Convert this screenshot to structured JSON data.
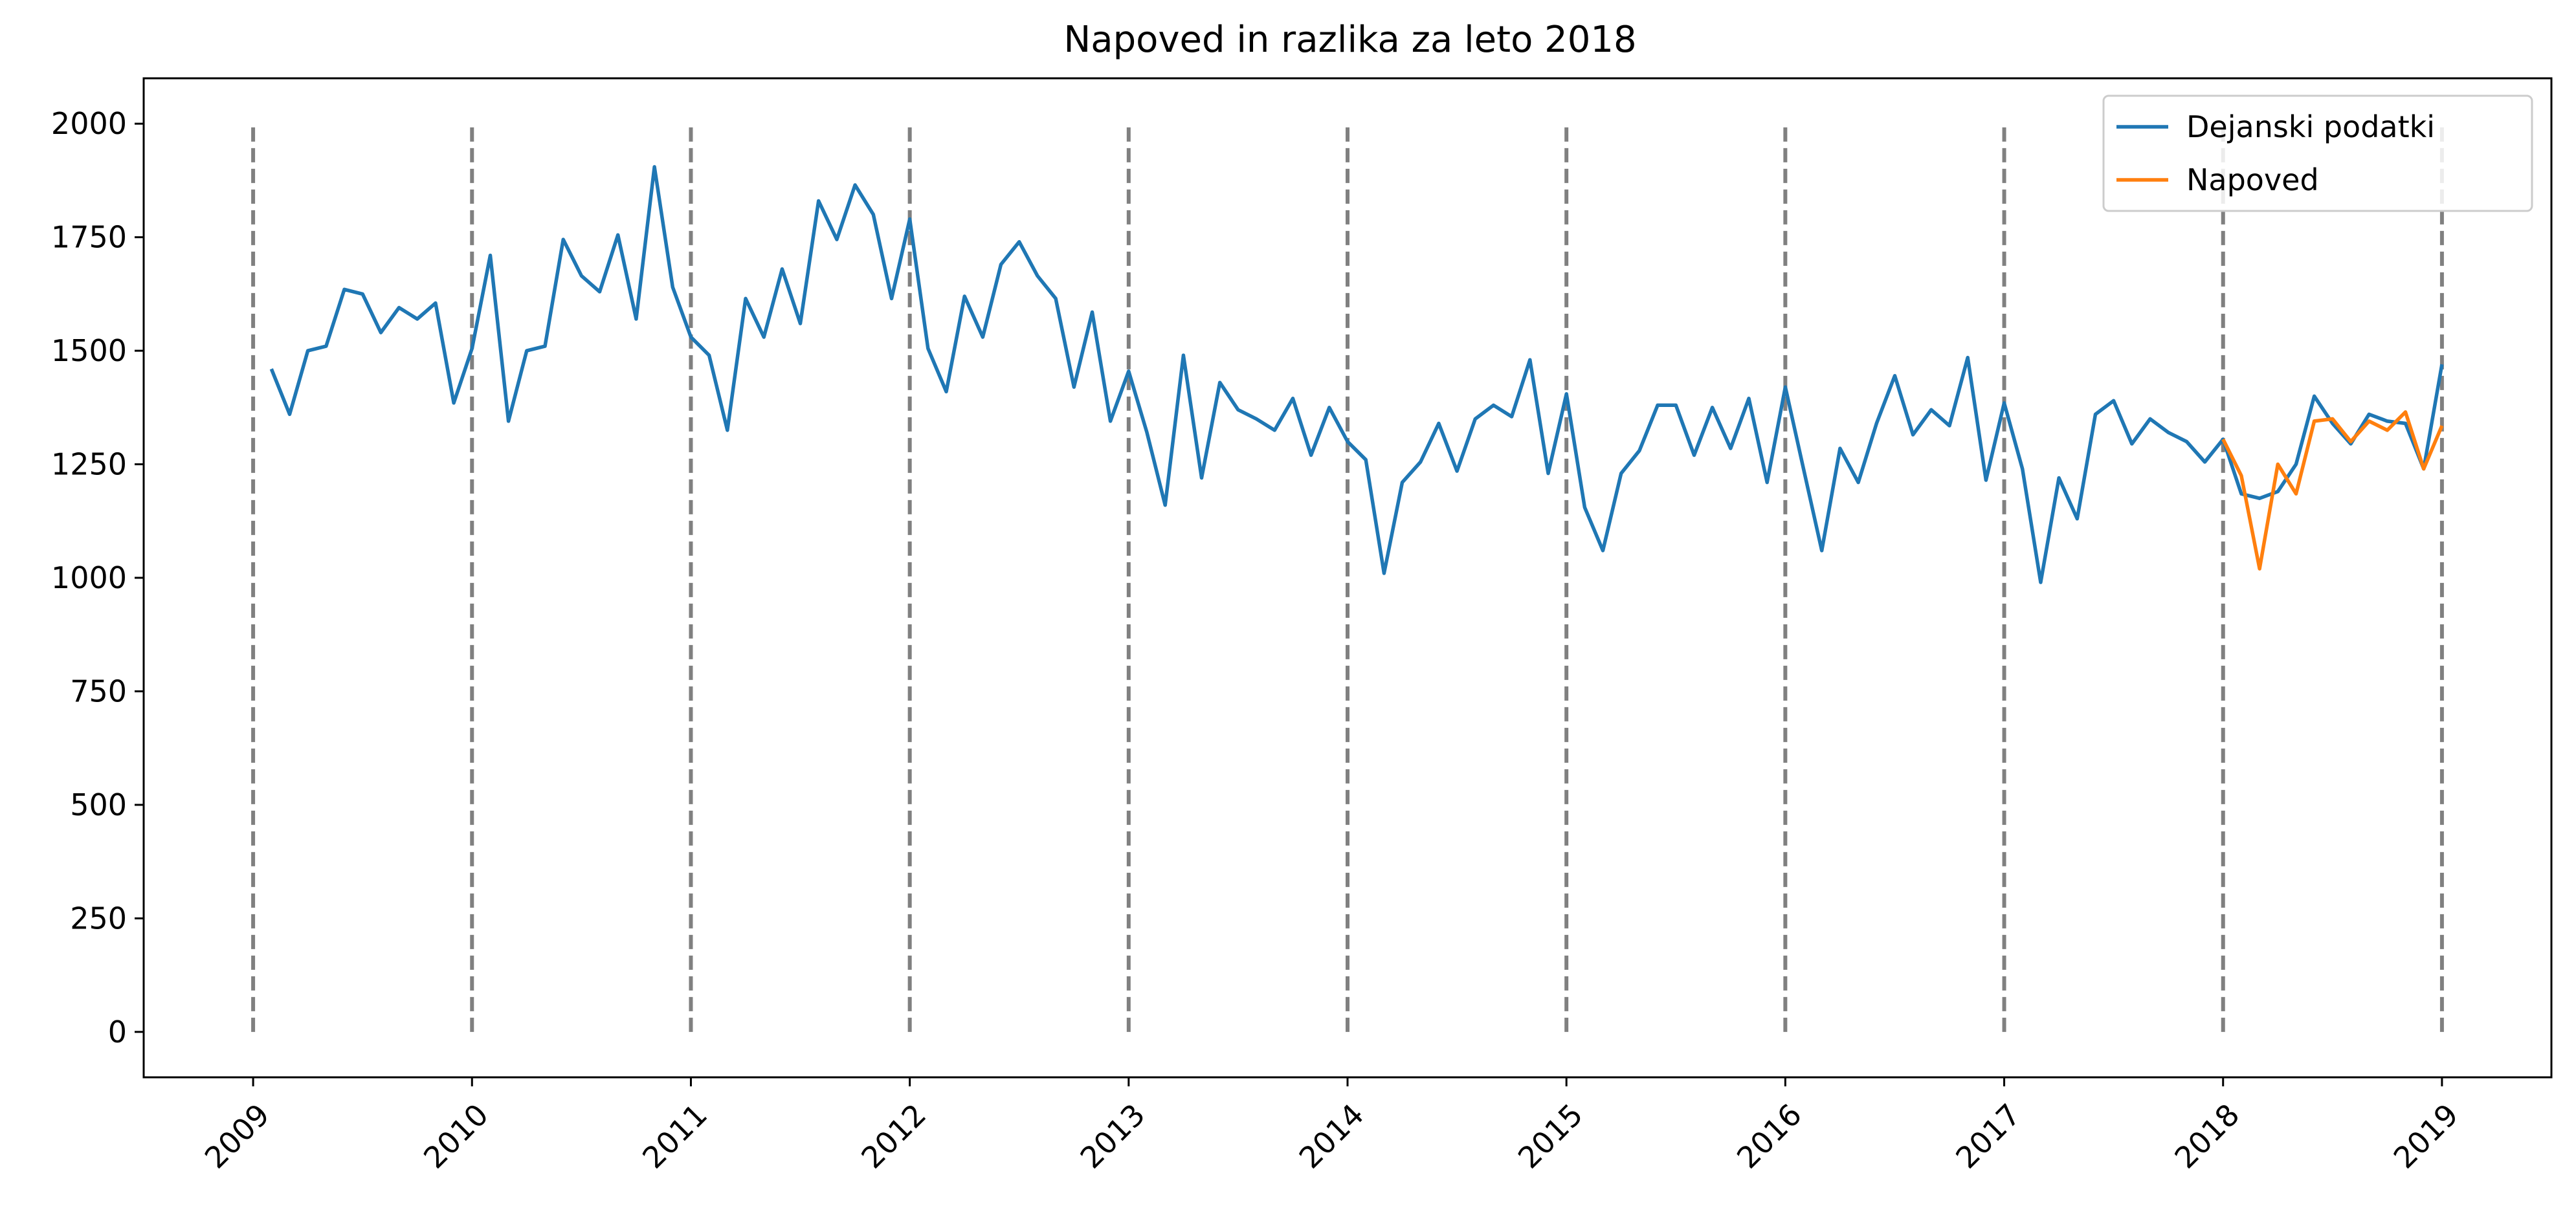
{
  "chart_data": {
    "type": "line",
    "title": "Napoved in razlika za leto 2018",
    "xlabel": "",
    "ylabel": "",
    "x_ticks": [
      "2009",
      "2010",
      "2011",
      "2012",
      "2013",
      "2014",
      "2015",
      "2016",
      "2017",
      "2018",
      "2019"
    ],
    "y_ticks": [
      0,
      250,
      500,
      750,
      1000,
      1250,
      1500,
      1750,
      2000
    ],
    "xlim": [
      2008.5,
      2019.5
    ],
    "ylim": [
      -100,
      2100
    ],
    "grid": false,
    "legend_position": "top-right",
    "year_markers": {
      "years": [
        2009,
        2010,
        2011,
        2012,
        2013,
        2014,
        2015,
        2016,
        2017,
        2018,
        2019
      ],
      "y_from": 0,
      "y_to": 2000,
      "color": "#808080",
      "style": "dashed"
    },
    "series": [
      {
        "name": "Dejanski podatki",
        "color": "#1f77b4",
        "x_start": "2009-02",
        "step": "month",
        "values": [
          1460,
          1360,
          1500,
          1510,
          1635,
          1625,
          1540,
          1595,
          1570,
          1605,
          1385,
          1505,
          1710,
          1345,
          1500,
          1510,
          1745,
          1665,
          1630,
          1755,
          1570,
          1905,
          1640,
          1530,
          1490,
          1325,
          1615,
          1530,
          1680,
          1560,
          1830,
          1745,
          1865,
          1800,
          1615,
          1790,
          1505,
          1410,
          1620,
          1530,
          1690,
          1740,
          1665,
          1615,
          1420,
          1585,
          1345,
          1455,
          1320,
          1160,
          1490,
          1220,
          1430,
          1370,
          1350,
          1325,
          1395,
          1270,
          1375,
          1300,
          1260,
          1010,
          1210,
          1255,
          1340,
          1235,
          1350,
          1380,
          1355,
          1480,
          1230,
          1405,
          1155,
          1060,
          1230,
          1280,
          1380,
          1380,
          1270,
          1375,
          1285,
          1395,
          1210,
          1420,
          1240,
          1060,
          1285,
          1210,
          1340,
          1445,
          1315,
          1370,
          1335,
          1485,
          1215,
          1385,
          1240,
          990,
          1220,
          1130,
          1360,
          1390,
          1295,
          1350,
          1320,
          1300,
          1255,
          1305,
          1185,
          1175,
          1190,
          1250,
          1400,
          1340,
          1295,
          1360,
          1345,
          1340,
          1240,
          1470
        ]
      },
      {
        "name": "Napoved",
        "color": "#ff7f0e",
        "x_start": "2018-01",
        "step": "month",
        "values": [
          1305,
          1225,
          1020,
          1250,
          1185,
          1345,
          1350,
          1300,
          1345,
          1325,
          1365,
          1240,
          1335
        ]
      }
    ]
  }
}
